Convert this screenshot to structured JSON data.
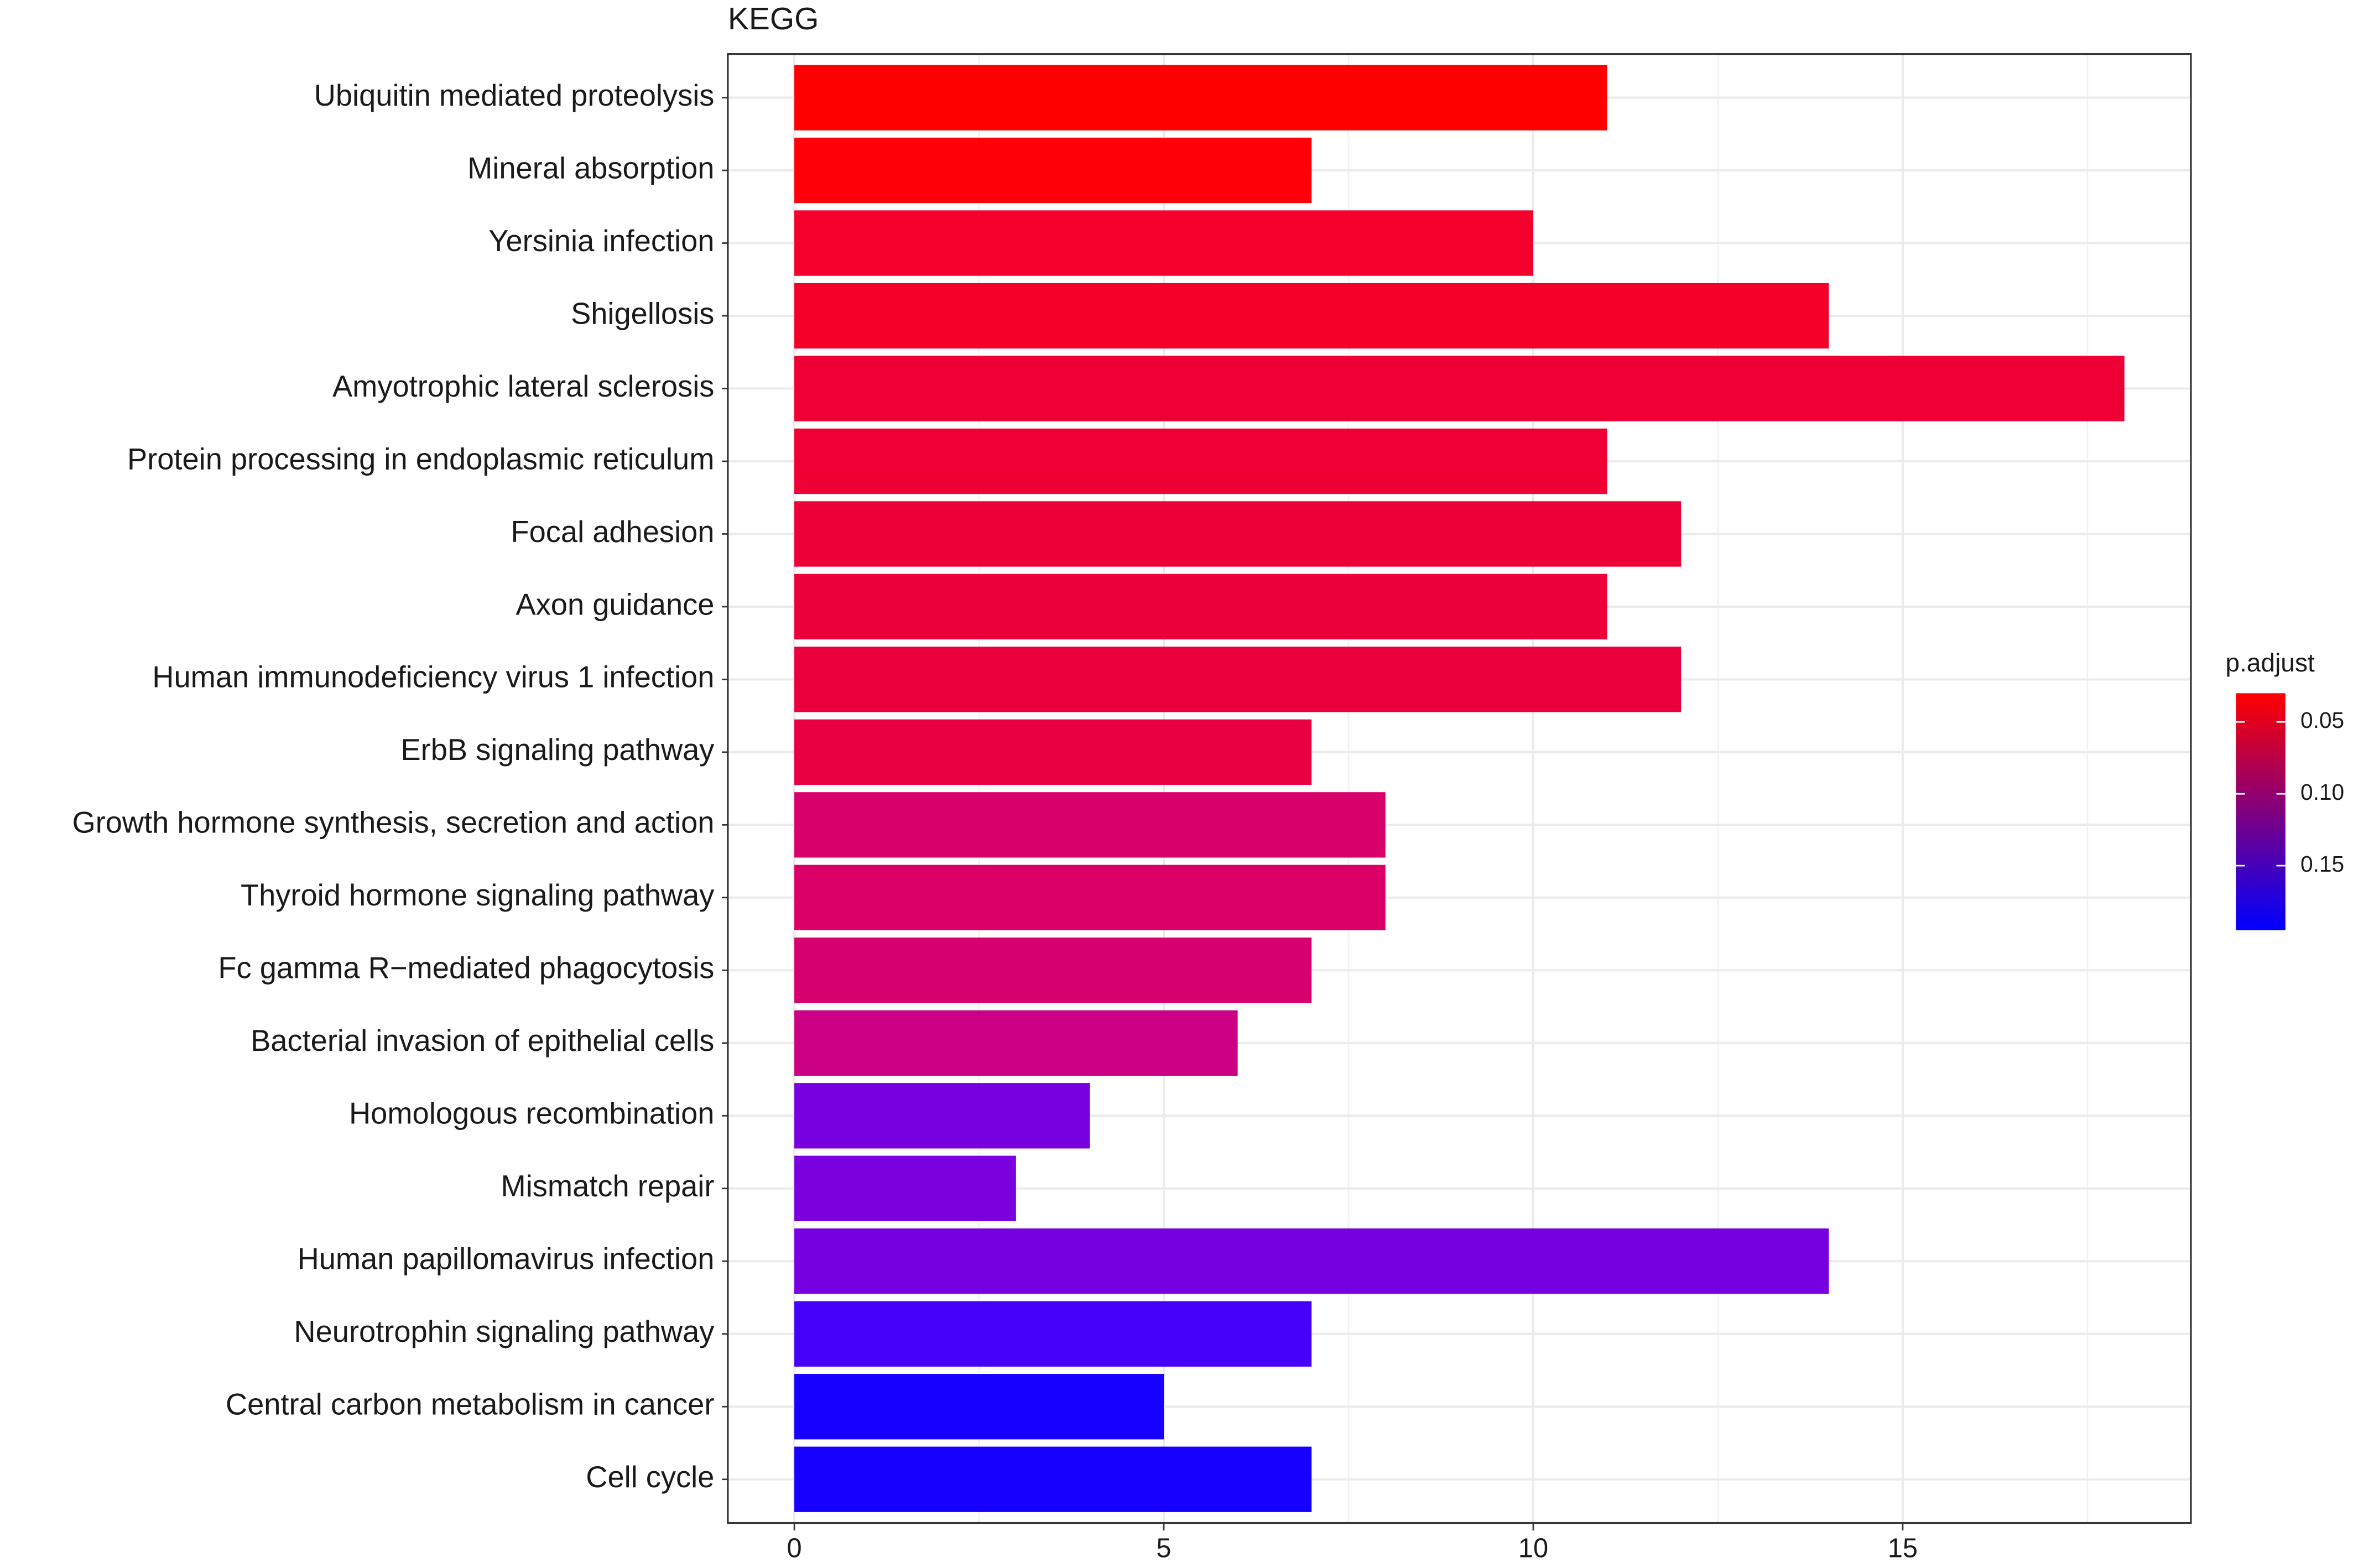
{
  "chart_data": {
    "type": "hbar",
    "title": "KEGG",
    "categories": [
      "Ubiquitin mediated proteolysis",
      "Mineral absorption",
      "Yersinia infection",
      "Shigellosis",
      "Amyotrophic lateral sclerosis",
      "Protein processing in endoplasmic reticulum",
      "Focal adhesion",
      "Axon guidance",
      "Human immunodeficiency virus 1 infection",
      "ErbB signaling pathway",
      "Growth hormone synthesis, secretion and action",
      "Thyroid hormone signaling pathway",
      "Fc gamma R−mediated phagocytosis",
      "Bacterial invasion of epithelial cells",
      "Homologous recombination",
      "Mismatch repair",
      "Human papillomavirus infection",
      "Neurotrophin signaling pathway",
      "Central carbon metabolism in cancer",
      "Cell cycle"
    ],
    "values": [
      11,
      7,
      10,
      14,
      18,
      11,
      12,
      11,
      12,
      7,
      8,
      8,
      7,
      6,
      4,
      3,
      14,
      7,
      5,
      7
    ],
    "colors": [
      "#ff0000",
      "#fe0008",
      "#f3002c",
      "#f20028",
      "#ef0034",
      "#ef0034",
      "#ed0038",
      "#ec003a",
      "#ea003d",
      "#e80042",
      "#d8006b",
      "#da0068",
      "#d6006f",
      "#cc0085",
      "#7800e0",
      "#7a00dd",
      "#7600e0",
      "#4400f8",
      "#1700ff",
      "#1800ff"
    ],
    "xlim": [
      -0.9,
      18.9
    ],
    "xticks": [
      0,
      5,
      10,
      15
    ],
    "grid": true,
    "colorbar": {
      "title": "p.adjust",
      "lim": [
        0.03,
        0.195
      ],
      "ticks": [
        0.05,
        {
          "value": 0.1,
          "label": "0.10"
        },
        0.15
      ],
      "colors": [
        "#ff0000",
        "#0000ff"
      ]
    }
  }
}
